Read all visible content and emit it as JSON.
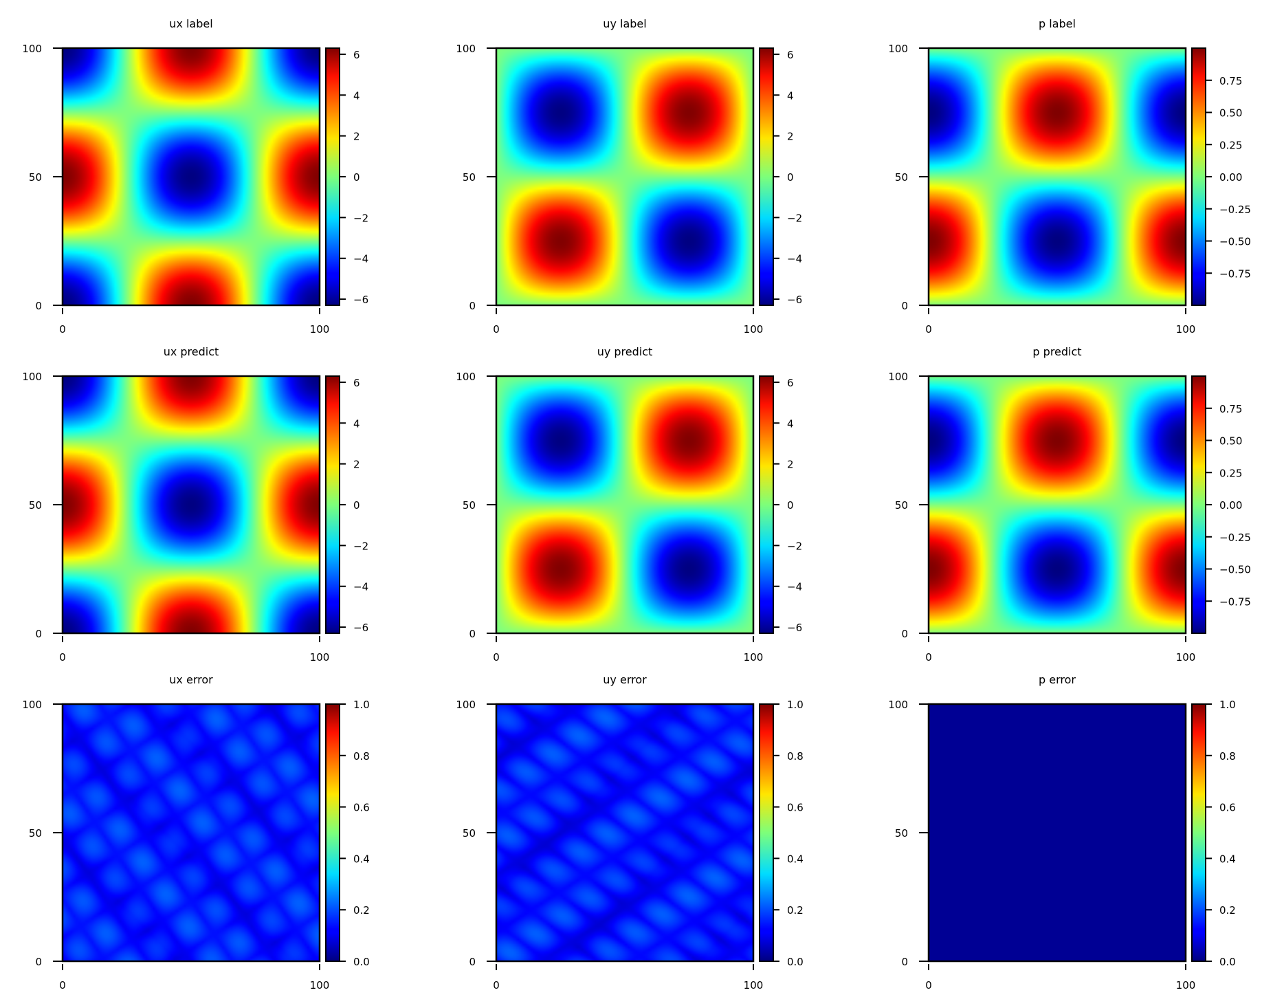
{
  "figure": {
    "layout": "3x3 grid",
    "colormap": "jet"
  },
  "chart_data": [
    {
      "type": "heatmap",
      "title": "ux label",
      "field": "sin_sin",
      "x_range": [
        0,
        100
      ],
      "y_range": [
        0,
        100
      ],
      "x_ticks": [
        {
          "v": 0,
          "label": "0"
        },
        {
          "v": 100,
          "label": "100"
        }
      ],
      "y_ticks": [
        {
          "v": 0,
          "label": "0"
        },
        {
          "v": 50,
          "label": "50"
        },
        {
          "v": 100,
          "label": "100"
        }
      ],
      "colorbar": {
        "range": [
          -6.3,
          6.3
        ],
        "ticks": [
          {
            "v": 6,
            "label": "6"
          },
          {
            "v": 4,
            "label": "4"
          },
          {
            "v": 2,
            "label": "2"
          },
          {
            "v": 0,
            "label": "0"
          },
          {
            "v": -2,
            "label": "−2"
          },
          {
            "v": -4,
            "label": "−4"
          },
          {
            "v": -6,
            "label": "−6"
          }
        ]
      }
    },
    {
      "type": "heatmap",
      "title": "uy label",
      "field": "uy",
      "x_range": [
        0,
        100
      ],
      "y_range": [
        0,
        100
      ],
      "x_ticks": [
        {
          "v": 0,
          "label": "0"
        },
        {
          "v": 100,
          "label": "100"
        }
      ],
      "y_ticks": [
        {
          "v": 0,
          "label": "0"
        },
        {
          "v": 50,
          "label": "50"
        },
        {
          "v": 100,
          "label": "100"
        }
      ],
      "colorbar": {
        "range": [
          -6.3,
          6.3
        ],
        "ticks": [
          {
            "v": 6,
            "label": "6"
          },
          {
            "v": 4,
            "label": "4"
          },
          {
            "v": 2,
            "label": "2"
          },
          {
            "v": 0,
            "label": "0"
          },
          {
            "v": -2,
            "label": "−2"
          },
          {
            "v": -4,
            "label": "−4"
          },
          {
            "v": -6,
            "label": "−6"
          }
        ]
      }
    },
    {
      "type": "heatmap",
      "title": "p label",
      "field": "p",
      "x_range": [
        0,
        100
      ],
      "y_range": [
        0,
        100
      ],
      "x_ticks": [
        {
          "v": 0,
          "label": "0"
        },
        {
          "v": 100,
          "label": "100"
        }
      ],
      "y_ticks": [
        {
          "v": 0,
          "label": "0"
        },
        {
          "v": 50,
          "label": "50"
        },
        {
          "v": 100,
          "label": "100"
        }
      ],
      "colorbar": {
        "range": [
          -1.0,
          1.0
        ],
        "ticks": [
          {
            "v": 0.75,
            "label": "0.75"
          },
          {
            "v": 0.5,
            "label": "0.50"
          },
          {
            "v": 0.25,
            "label": "0.25"
          },
          {
            "v": 0,
            "label": "0.00"
          },
          {
            "v": -0.25,
            "label": "−0.25"
          },
          {
            "v": -0.5,
            "label": "−0.50"
          },
          {
            "v": -0.75,
            "label": "−0.75"
          }
        ]
      }
    },
    {
      "type": "heatmap",
      "title": "ux predict",
      "field": "ux",
      "x_range": [
        0,
        100
      ],
      "y_range": [
        0,
        100
      ],
      "x_ticks": [
        {
          "v": 0,
          "label": "0"
        },
        {
          "v": 100,
          "label": "100"
        }
      ],
      "y_ticks": [
        {
          "v": 0,
          "label": "0"
        },
        {
          "v": 50,
          "label": "50"
        },
        {
          "v": 100,
          "label": "100"
        }
      ],
      "colorbar": {
        "range": [
          -6.3,
          6.3
        ],
        "ticks": [
          {
            "v": 6,
            "label": "6"
          },
          {
            "v": 4,
            "label": "4"
          },
          {
            "v": 2,
            "label": "2"
          },
          {
            "v": 0,
            "label": "0"
          },
          {
            "v": -2,
            "label": "−2"
          },
          {
            "v": -4,
            "label": "−4"
          },
          {
            "v": -6,
            "label": "−6"
          }
        ]
      }
    },
    {
      "type": "heatmap",
      "title": "uy predict",
      "field": "uy",
      "x_range": [
        0,
        100
      ],
      "y_range": [
        0,
        100
      ],
      "x_ticks": [
        {
          "v": 0,
          "label": "0"
        },
        {
          "v": 100,
          "label": "100"
        }
      ],
      "y_ticks": [
        {
          "v": 0,
          "label": "0"
        },
        {
          "v": 50,
          "label": "50"
        },
        {
          "v": 100,
          "label": "100"
        }
      ],
      "colorbar": {
        "range": [
          -6.3,
          6.3
        ],
        "ticks": [
          {
            "v": 6,
            "label": "6"
          },
          {
            "v": 4,
            "label": "4"
          },
          {
            "v": 2,
            "label": "2"
          },
          {
            "v": 0,
            "label": "0"
          },
          {
            "v": -2,
            "label": "−2"
          },
          {
            "v": -4,
            "label": "−4"
          },
          {
            "v": -6,
            "label": "−6"
          }
        ]
      }
    },
    {
      "type": "heatmap",
      "title": "p predict",
      "field": "p",
      "x_range": [
        0,
        100
      ],
      "y_range": [
        0,
        100
      ],
      "x_ticks": [
        {
          "v": 0,
          "label": "0"
        },
        {
          "v": 100,
          "label": "100"
        }
      ],
      "y_ticks": [
        {
          "v": 0,
          "label": "0"
        },
        {
          "v": 50,
          "label": "50"
        },
        {
          "v": 100,
          "label": "100"
        }
      ],
      "colorbar": {
        "range": [
          -1.0,
          1.0
        ],
        "ticks": [
          {
            "v": 0.75,
            "label": "0.75"
          },
          {
            "v": 0.5,
            "label": "0.50"
          },
          {
            "v": 0.25,
            "label": "0.25"
          },
          {
            "v": 0,
            "label": "0.00"
          },
          {
            "v": -0.25,
            "label": "−0.25"
          },
          {
            "v": -0.5,
            "label": "−0.50"
          },
          {
            "v": -0.75,
            "label": "−0.75"
          }
        ]
      }
    },
    {
      "type": "heatmap",
      "title": "ux error",
      "field": "err_ux",
      "x_range": [
        0,
        100
      ],
      "y_range": [
        0,
        100
      ],
      "x_ticks": [
        {
          "v": 0,
          "label": "0"
        },
        {
          "v": 100,
          "label": "100"
        }
      ],
      "y_ticks": [
        {
          "v": 0,
          "label": "0"
        },
        {
          "v": 50,
          "label": "50"
        },
        {
          "v": 100,
          "label": "100"
        }
      ],
      "colorbar": {
        "range": [
          0,
          1.0
        ],
        "ticks": [
          {
            "v": 1.0,
            "label": "1.0"
          },
          {
            "v": 0.8,
            "label": "0.8"
          },
          {
            "v": 0.6,
            "label": "0.6"
          },
          {
            "v": 0.4,
            "label": "0.4"
          },
          {
            "v": 0.2,
            "label": "0.2"
          },
          {
            "v": 0.0,
            "label": "0.0"
          }
        ]
      }
    },
    {
      "type": "heatmap",
      "title": "uy error",
      "field": "err_uy",
      "x_range": [
        0,
        100
      ],
      "y_range": [
        0,
        100
      ],
      "x_ticks": [
        {
          "v": 0,
          "label": "0"
        },
        {
          "v": 100,
          "label": "100"
        }
      ],
      "y_ticks": [
        {
          "v": 0,
          "label": "0"
        },
        {
          "v": 50,
          "label": "50"
        },
        {
          "v": 100,
          "label": "100"
        }
      ],
      "colorbar": {
        "range": [
          0,
          1.0
        ],
        "ticks": [
          {
            "v": 1.0,
            "label": "1.0"
          },
          {
            "v": 0.8,
            "label": "0.8"
          },
          {
            "v": 0.6,
            "label": "0.6"
          },
          {
            "v": 0.4,
            "label": "0.4"
          },
          {
            "v": 0.2,
            "label": "0.2"
          },
          {
            "v": 0.0,
            "label": "0.0"
          }
        ]
      }
    },
    {
      "type": "heatmap",
      "title": "p error",
      "field": "err_p",
      "x_range": [
        0,
        100
      ],
      "y_range": [
        0,
        100
      ],
      "x_ticks": [
        {
          "v": 0,
          "label": "0"
        },
        {
          "v": 100,
          "label": "100"
        }
      ],
      "y_ticks": [
        {
          "v": 0,
          "label": "0"
        },
        {
          "v": 50,
          "label": "50"
        },
        {
          "v": 100,
          "label": "100"
        }
      ],
      "colorbar": {
        "range": [
          0,
          1.0
        ],
        "ticks": [
          {
            "v": 1.0,
            "label": "1.0"
          },
          {
            "v": 0.8,
            "label": "0.8"
          },
          {
            "v": 0.6,
            "label": "0.6"
          },
          {
            "v": 0.4,
            "label": "0.4"
          },
          {
            "v": 0.2,
            "label": "0.2"
          },
          {
            "v": 0.0,
            "label": "0.0"
          }
        ]
      }
    }
  ]
}
